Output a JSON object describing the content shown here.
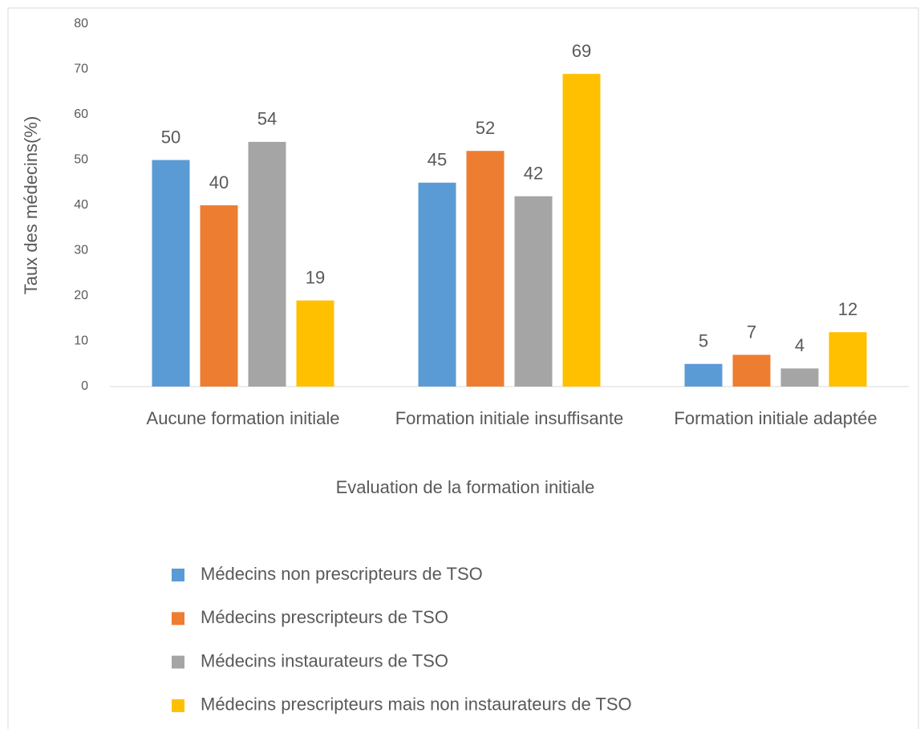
{
  "chart_data": {
    "type": "bar",
    "categories": [
      "Aucune formation initiale",
      "Formation initiale insuffisante",
      "Formation initiale adaptée"
    ],
    "series": [
      {
        "name": "Médecins non prescripteurs de TSO",
        "color": "#5b9bd5",
        "values": [
          50,
          45,
          5
        ]
      },
      {
        "name": "Médecins prescripteurs de TSO",
        "color": "#ed7d31",
        "values": [
          40,
          52,
          7
        ]
      },
      {
        "name": "Médecins instaurateurs de TSO",
        "color": "#a5a5a5",
        "values": [
          54,
          42,
          4
        ]
      },
      {
        "name": "Médecins prescripteurs mais non instaurateurs de TSO",
        "color": "#ffc000",
        "values": [
          19,
          69,
          12
        ]
      }
    ],
    "x_label": "Evaluation de la formation initiale",
    "y_label": "Taux des médecins(%)",
    "ylim": [
      0,
      80
    ],
    "yticks": [
      0,
      10,
      20,
      30,
      40,
      50,
      60,
      70,
      80
    ],
    "grid": false,
    "legend": "bottom"
  }
}
